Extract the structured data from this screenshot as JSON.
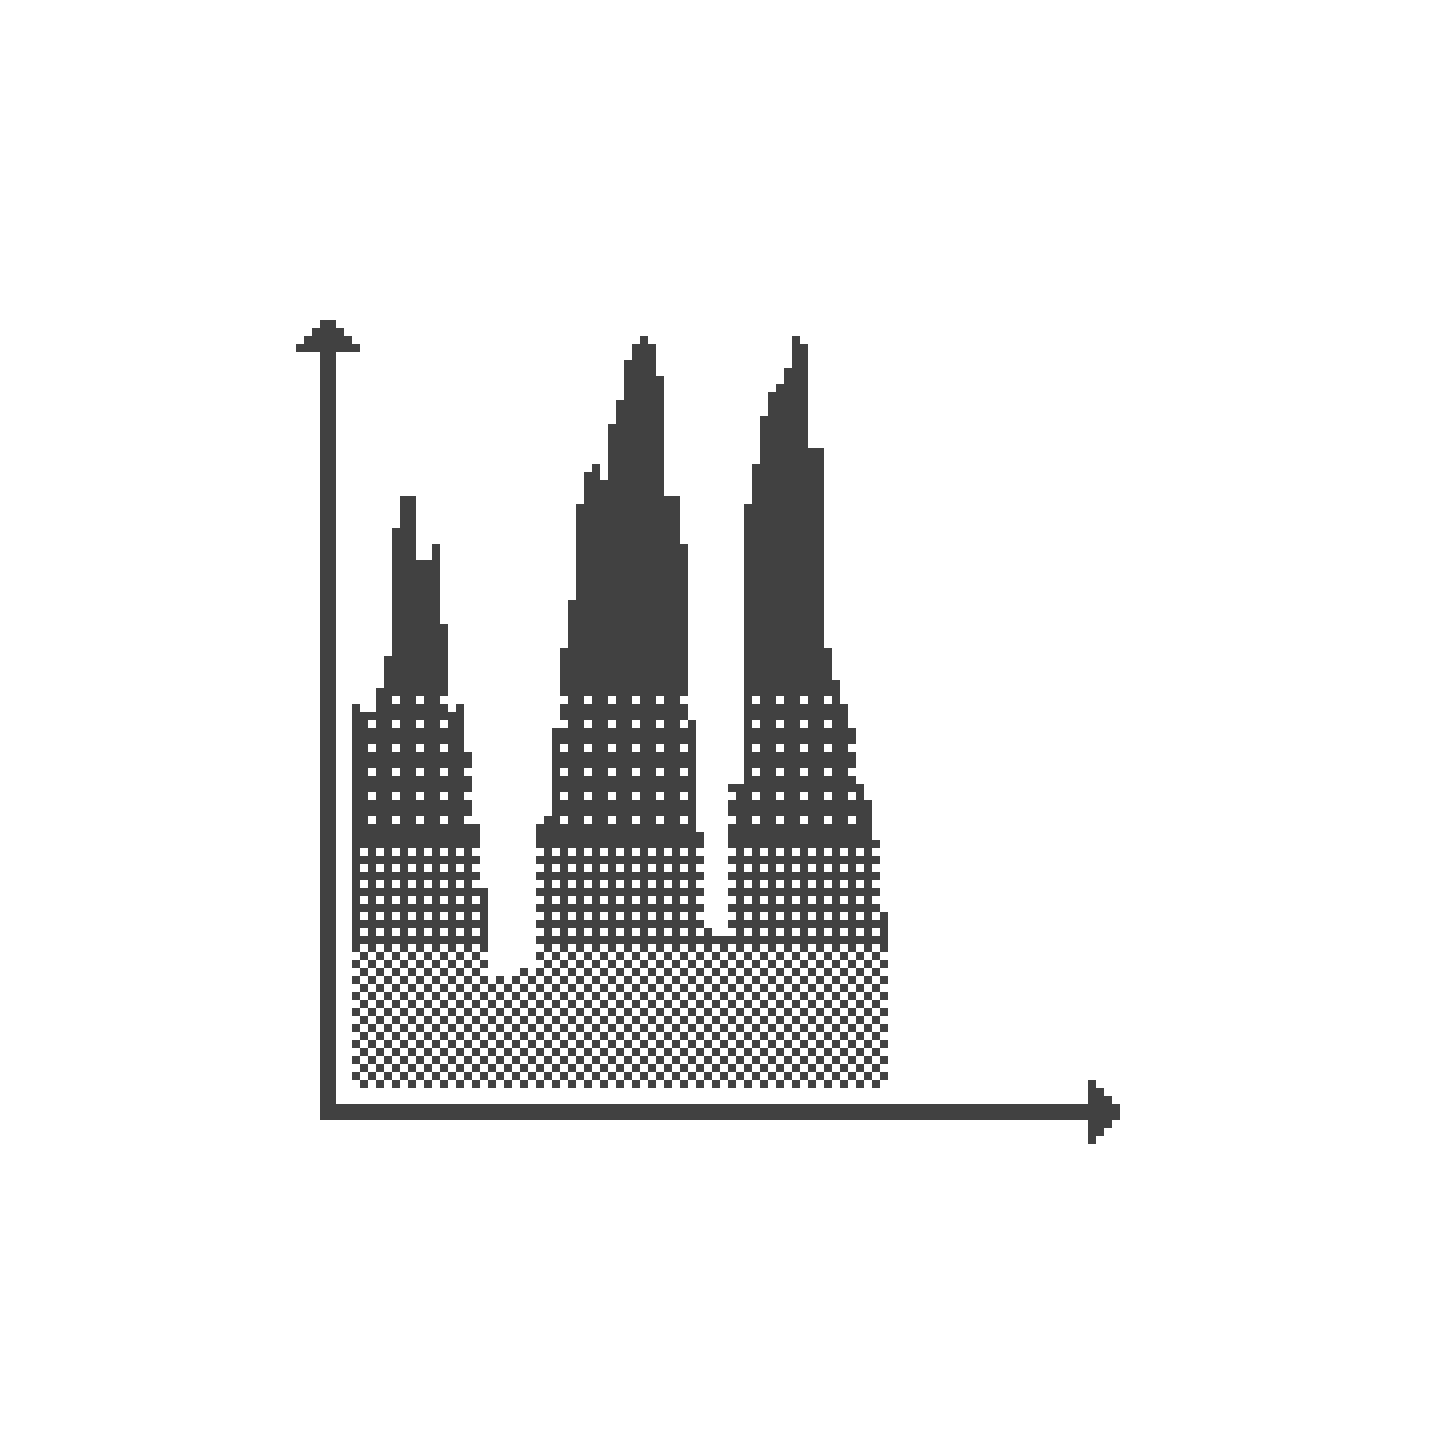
{
  "chart_data": {
    "type": "bar",
    "title": "",
    "xlabel": "",
    "ylabel": "",
    "grid": false,
    "legend": "none",
    "ylim": [
      0,
      96
    ],
    "values": [
      48,
      47,
      47,
      50,
      54,
      70,
      74,
      74,
      66,
      66,
      68,
      58,
      47,
      48,
      43,
      33,
      25,
      14,
      14,
      14,
      15,
      15,
      14,
      34,
      34,
      45,
      55,
      61,
      73,
      77,
      78,
      76,
      83,
      86,
      91,
      93,
      94,
      93,
      89,
      74,
      74,
      68,
      46,
      32,
      20,
      19,
      19,
      38,
      38,
      73,
      78,
      84,
      87,
      88,
      90,
      94,
      93,
      80,
      80,
      55,
      51,
      48,
      45,
      38,
      36,
      31,
      22
    ],
    "bands": [
      {
        "name": "solid",
        "from": 49,
        "to": 96
      },
      {
        "name": "sparse-dots",
        "from": 31,
        "to": 49
      },
      {
        "name": "dense-dots",
        "from": 18,
        "to": 31
      },
      {
        "name": "checker",
        "from": 0,
        "to": 18
      }
    ],
    "colors": {
      "fill": "#414141",
      "background": "#ffffff",
      "axis": "#414141"
    }
  }
}
